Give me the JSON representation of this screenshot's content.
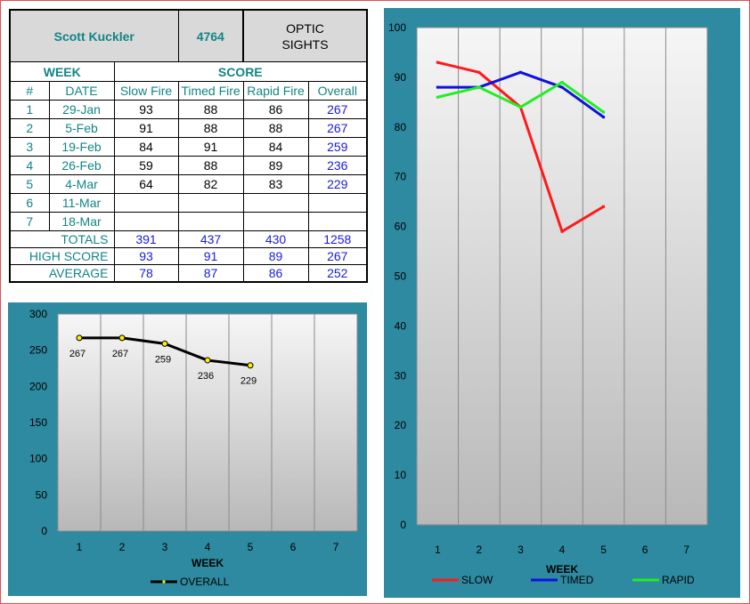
{
  "header": {
    "shooter_name": "Scott Kuckler",
    "number": "4764",
    "category_line1": "OPTIC",
    "category_line2": "SIGHTS"
  },
  "table": {
    "week_label": "WEEK",
    "score_label": "SCORE",
    "columns": [
      "#",
      "DATE",
      "Slow Fire",
      "Timed Fire",
      "Rapid Fire",
      "Overall"
    ],
    "rows": [
      {
        "num": "1",
        "date": "29-Jan",
        "slow": "93",
        "timed": "88",
        "rapid": "86",
        "overall": "267"
      },
      {
        "num": "2",
        "date": "5-Feb",
        "slow": "91",
        "timed": "88",
        "rapid": "88",
        "overall": "267"
      },
      {
        "num": "3",
        "date": "19-Feb",
        "slow": "84",
        "timed": "91",
        "rapid": "84",
        "overall": "259"
      },
      {
        "num": "4",
        "date": "26-Feb",
        "slow": "59",
        "timed": "88",
        "rapid": "89",
        "overall": "236"
      },
      {
        "num": "5",
        "date": "4-Mar",
        "slow": "64",
        "timed": "82",
        "rapid": "83",
        "overall": "229"
      },
      {
        "num": "6",
        "date": "11-Mar",
        "slow": "",
        "timed": "",
        "rapid": "",
        "overall": ""
      },
      {
        "num": "7",
        "date": "18-Mar",
        "slow": "",
        "timed": "",
        "rapid": "",
        "overall": ""
      }
    ],
    "totals": {
      "label": "TOTALS",
      "slow": "391",
      "timed": "437",
      "rapid": "430",
      "overall": "1258"
    },
    "high": {
      "label": "HIGH SCORE",
      "slow": "93",
      "timed": "91",
      "rapid": "89",
      "overall": "267"
    },
    "average": {
      "label": "AVERAGE",
      "slow": "78",
      "timed": "87",
      "rapid": "86",
      "overall": "252"
    }
  },
  "chart_data": [
    {
      "type": "line",
      "xlabel": "WEEK",
      "ylabel": "",
      "categories": [
        "1",
        "2",
        "3",
        "4",
        "5",
        "6",
        "7"
      ],
      "ylim": [
        0,
        300
      ],
      "yticks": [
        "0",
        "50",
        "100",
        "150",
        "200",
        "250",
        "300"
      ],
      "grid": true,
      "legend": "bottom",
      "series": [
        {
          "name": "OVERALL",
          "color": "#000000",
          "values": [
            267,
            267,
            259,
            236,
            229,
            null,
            null
          ],
          "data_labels": [
            "267",
            "267",
            "259",
            "236",
            "229"
          ]
        }
      ]
    },
    {
      "type": "line",
      "xlabel": "WEEK",
      "ylabel": "",
      "categories": [
        "1",
        "2",
        "3",
        "4",
        "5",
        "6",
        "7"
      ],
      "ylim": [
        0,
        100
      ],
      "yticks": [
        "0",
        "10",
        "20",
        "30",
        "40",
        "50",
        "60",
        "70",
        "80",
        "90",
        "100"
      ],
      "grid": true,
      "legend": "bottom",
      "series": [
        {
          "name": "SLOW",
          "color": "#ff1a1a",
          "values": [
            93,
            91,
            84,
            59,
            64,
            null,
            null
          ]
        },
        {
          "name": "TIMED",
          "color": "#1010e0",
          "values": [
            88,
            88,
            91,
            88,
            82,
            null,
            null
          ]
        },
        {
          "name": "RAPID",
          "color": "#22ee22",
          "values": [
            86,
            88,
            84,
            89,
            83,
            null,
            null
          ]
        }
      ]
    }
  ]
}
